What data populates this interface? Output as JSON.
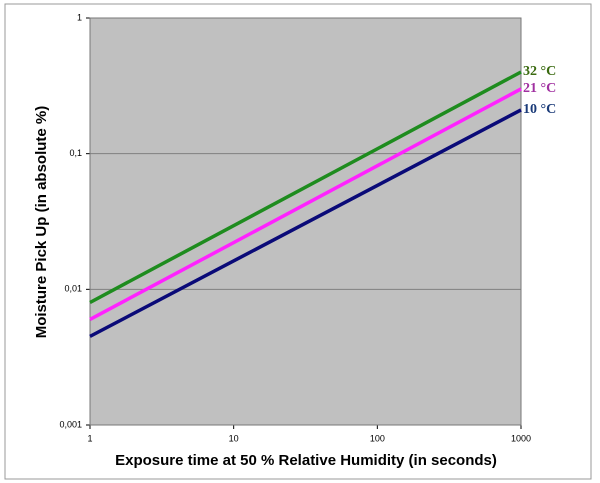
{
  "chart_data": {
    "type": "line",
    "x_label": "Exposure time at 50 % Relative Humidity (in seconds)",
    "y_label": "Moisture Pick Up (in absolute %)",
    "x": [
      1,
      1000
    ],
    "series": [
      {
        "name": "32 °C",
        "color": "#1e8c1e",
        "label_color": "#3a6a10",
        "values": [
          0.008,
          0.4
        ]
      },
      {
        "name": "21 °C",
        "color": "#ff22ff",
        "label_color": "#a030a0",
        "values": [
          0.006,
          0.3
        ]
      },
      {
        "name": "10 °C",
        "color": "#0a0a78",
        "label_color": "#1a3a78",
        "values": [
          0.0045,
          0.21
        ]
      }
    ],
    "xlim": [
      1,
      1000
    ],
    "ylim": [
      0.001,
      1
    ],
    "xticks": [
      1,
      10,
      100,
      1000
    ],
    "yticks": [
      {
        "value": 0.001,
        "label": "0,001"
      },
      {
        "value": 0.01,
        "label": "0,01"
      },
      {
        "value": 0.1,
        "label": "0,1"
      },
      1
    ],
    "xlog": true,
    "ylog": true,
    "grid": true,
    "plot_background": "#c0c0c0"
  }
}
